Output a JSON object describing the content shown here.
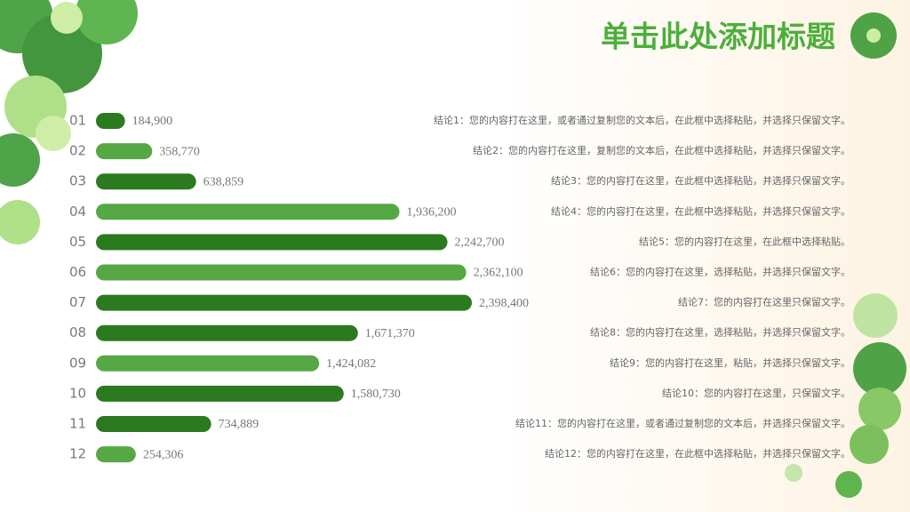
{
  "chart_data": {
    "type": "bar",
    "orientation": "horizontal",
    "title": "单击此处添加标题",
    "categories": [
      "01",
      "02",
      "03",
      "04",
      "05",
      "06",
      "07",
      "08",
      "09",
      "10",
      "11",
      "12"
    ],
    "values": [
      184900,
      358770,
      638859,
      1936200,
      2242700,
      2362100,
      2398400,
      1671370,
      1424082,
      1580730,
      734889,
      254306
    ],
    "value_labels": [
      "184,900",
      "358,770",
      "638,859",
      "1,936,200",
      "2,242,700",
      "2,362,100",
      "2,398,400",
      "1,671,370",
      "1,424,082",
      "1,580,730",
      "734,889",
      "254,306"
    ],
    "colors": [
      "#2b7a1f",
      "#55a844",
      "#2b7a1f",
      "#55a844",
      "#2b7a1f",
      "#55a844",
      "#2b7a1f",
      "#2b7a1f",
      "#55a844",
      "#2b7a1f",
      "#2b7a1f",
      "#55a844"
    ],
    "conclusions": [
      "结论1：您的内容打在这里，或者通过复制您的文本后，在此框中选择粘贴，并选择只保留文字。",
      "结论2：您的内容打在这里，复制您的文本后，在此框中选择粘贴，并选择只保留文字。",
      "结论3：您的内容打在这里，在此框中选择粘贴，并选择只保留文字。",
      "结论4：您的内容打在这里，在此框中选择粘贴，并选择只保留文字。",
      "结论5：您的内容打在这里，在此框中选择粘贴。",
      "结论6：您的内容打在这里，选择粘贴，并选择只保留文字。",
      "结论7：您的内容打在这里只保留文字。",
      "结论8：您的内容打在这里，选择粘贴，并选择只保留文字。",
      "结论9：您的内容打在这里，粘贴，并选择只保留文字。",
      "结论10：您的内容打在这里，只保留文字。",
      "结论11：您的内容打在这里，或者通过复制您的文本后，并选择只保留文字。",
      "结论12：您的内容打在这里，在此框中选择粘贴，并选择只保留文字。"
    ]
  }
}
